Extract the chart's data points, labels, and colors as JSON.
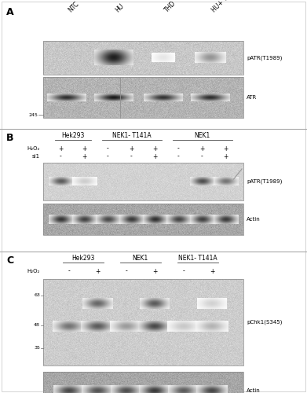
{
  "fig_width": 3.91,
  "fig_height": 5.0,
  "bg_color": "#ffffff",
  "panel_A": {
    "label": "A",
    "lane_labels": [
      "NTC",
      "HU",
      "THD",
      "HU+ THD"
    ],
    "blot1_label": "pATR(T1989)",
    "blot2_label": "ATR",
    "mw_label": "245"
  },
  "panel_B": {
    "label": "B",
    "group_labels": [
      "Hek293",
      "NEK1- T141A",
      "NEK1"
    ],
    "H2O2_row": [
      "+",
      "+",
      "-",
      "+",
      "+",
      "-",
      "+",
      "+"
    ],
    "si1_row": [
      "-",
      "+",
      "-",
      "-",
      "+",
      "-",
      "-",
      "+"
    ],
    "blot1_label": "pATR(T1989)",
    "blot2_label": "Actin"
  },
  "panel_C": {
    "label": "C",
    "group_labels": [
      "Hek293",
      "NEK1",
      "NEK1- T141A"
    ],
    "H2O2_row": [
      "-",
      "+",
      "-",
      "+",
      "-",
      "+"
    ],
    "blot1_label": "pChk1(S345)",
    "blot2_label": "Actin",
    "mw_labels": [
      "63",
      "48",
      "35"
    ]
  }
}
